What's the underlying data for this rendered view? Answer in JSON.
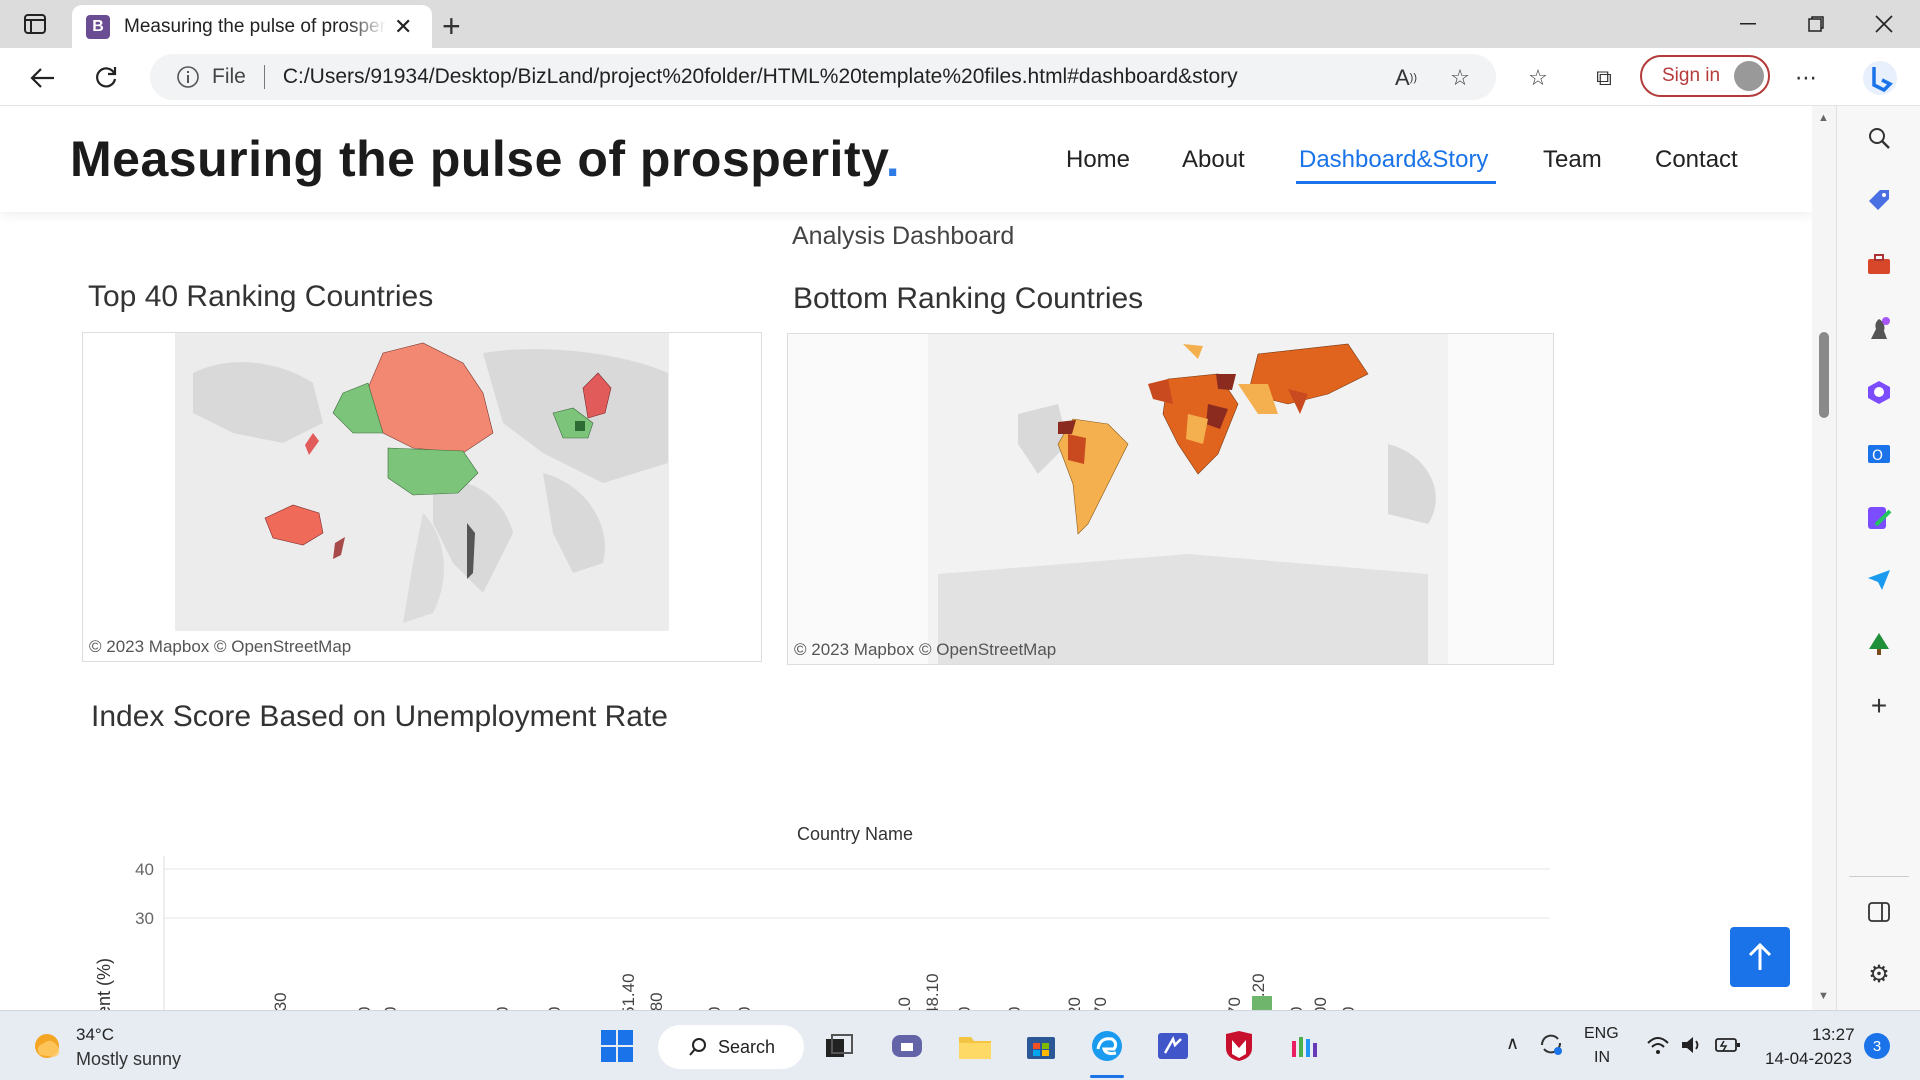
{
  "browser": {
    "tab_title": "Measuring the pulse of prosperity",
    "tab_favicon": "B",
    "address_prefix": "File",
    "url": "C:/Users/91934/Desktop/BizLand/project%20folder/HTML%20template%20files.html#dashboard&story",
    "signin_label": "Sign in"
  },
  "site": {
    "brand": "Measuring the pulse of prosperity",
    "brand_dot": ".",
    "nav": {
      "home": "Home",
      "about": "About",
      "dashboard": "Dashboard&Story",
      "team": "Team",
      "contact": "Contact"
    },
    "dashboard_title": "Analysis Dashboard",
    "top_map": {
      "title": "Top 40 Ranking Countries",
      "credit": "© 2023 Mapbox  © OpenStreetMap"
    },
    "bottom_map": {
      "title": "Bottom Ranking Countries",
      "credit": "© 2023 Mapbox  © OpenStreetMap"
    },
    "unemployment_title": "Index Score Based on Unemployment Rate"
  },
  "chart_data": {
    "type": "bar",
    "title": "Country Name",
    "ylabel": "ent (%)",
    "ytick_labels": [
      "40",
      "30"
    ],
    "visible_bar_labels": [
      ".30",
      "0",
      "0",
      "0",
      "0",
      "51.40",
      ".80",
      "0",
      "0",
      "10",
      "48.10",
      "0",
      "0",
      "20",
      "70",
      "70",
      "56.20",
      "0",
      "00",
      "0"
    ],
    "highlight_bar_value": 56.2,
    "highlight_color": "#6fb56b"
  },
  "taskbar": {
    "weather_temp": "34°C",
    "weather_desc": "Mostly sunny",
    "search_label": "Search",
    "lang_line1": "ENG",
    "lang_line2": "IN",
    "time": "13:27",
    "date": "14-04-2023",
    "notifications": "3"
  }
}
